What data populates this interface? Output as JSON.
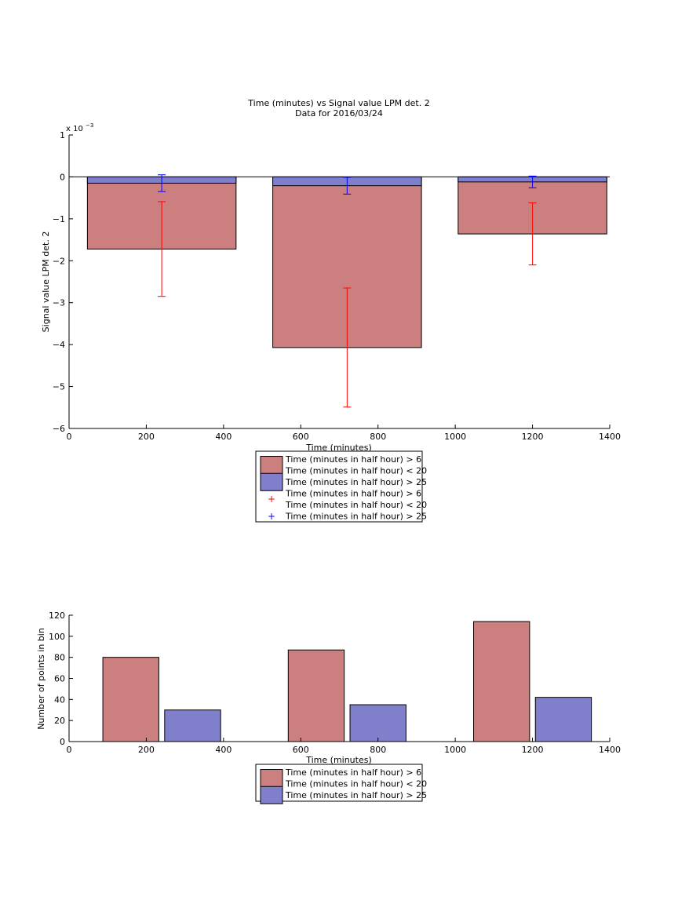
{
  "chart_data": [
    {
      "type": "bar",
      "title": "Time (minutes) vs Signal value LPM det. 2",
      "subtitle": "Data for 2016/03/24",
      "xlabel": "Time (minutes)",
      "ylabel": "Signal value LPM det. 2",
      "y_exponent_label": "x 10",
      "y_exponent_power": "−3",
      "xlim": [
        0,
        1400
      ],
      "ylim": [
        -6,
        1
      ],
      "xticks": [
        0,
        200,
        400,
        600,
        800,
        1000,
        1200,
        1400
      ],
      "yticks": [
        1,
        0,
        -1,
        -2,
        -3,
        -4,
        -5,
        -6
      ],
      "grid": false,
      "legend_position": "below",
      "x": [
        240,
        720,
        1200
      ],
      "bar_width": 385,
      "series": [
        {
          "name": "Time (minutes in half hour) > 6 Time (minutes in half hour) < 20",
          "values": [
            -1.72,
            -4.07,
            -1.36
          ],
          "errors": [
            1.13,
            1.42,
            0.74
          ],
          "color": "#cc7f7f",
          "error_color": "#ff0000"
        },
        {
          "name": "Time (minutes in half hour) > 25",
          "values": [
            -0.15,
            -0.21,
            -0.12
          ],
          "errors": [
            0.2,
            0.2,
            0.14
          ],
          "color": "#7f7fcc",
          "error_color": "#0000ff"
        }
      ],
      "legend": [
        {
          "kind": "bar",
          "color": "#cc7f7f",
          "lines": [
            "Time (minutes in half hour) > 6",
            "Time (minutes in half hour) < 20"
          ]
        },
        {
          "kind": "bar",
          "color": "#7f7fcc",
          "lines": [
            "Time (minutes in half hour) > 25"
          ]
        },
        {
          "kind": "marker",
          "color": "#ff0000",
          "lines": [
            "Time (minutes in half hour) > 6",
            "Time (minutes in half hour) < 20"
          ]
        },
        {
          "kind": "marker",
          "color": "#0000ff",
          "lines": [
            "Time (minutes in half hour) > 25"
          ]
        }
      ]
    },
    {
      "type": "bar",
      "xlabel": "Time (minutes)",
      "ylabel": "Number of points in bin",
      "xlim": [
        0,
        1400
      ],
      "ylim": [
        0,
        120
      ],
      "xticks": [
        0,
        200,
        400,
        600,
        800,
        1000,
        1200,
        1400
      ],
      "yticks": [
        0,
        20,
        40,
        60,
        80,
        100,
        120
      ],
      "grid": false,
      "legend_position": "below",
      "bar_width": 145,
      "series": [
        {
          "name": "Time (minutes in half hour) > 6 Time (minutes in half hour) < 20",
          "x": [
            160,
            640,
            1120
          ],
          "values": [
            80,
            87,
            114
          ],
          "color": "#cc7f7f"
        },
        {
          "name": "Time (minutes in half hour) > 25",
          "x": [
            320,
            800,
            1280
          ],
          "values": [
            30,
            35,
            42
          ],
          "color": "#7f7fcc"
        }
      ],
      "legend": [
        {
          "kind": "bar",
          "color": "#cc7f7f",
          "lines": [
            "Time (minutes in half hour) > 6",
            "Time (minutes in half hour) < 20"
          ]
        },
        {
          "kind": "bar",
          "color": "#7f7fcc",
          "lines": [
            "Time (minutes in half hour) > 25"
          ]
        }
      ]
    }
  ]
}
